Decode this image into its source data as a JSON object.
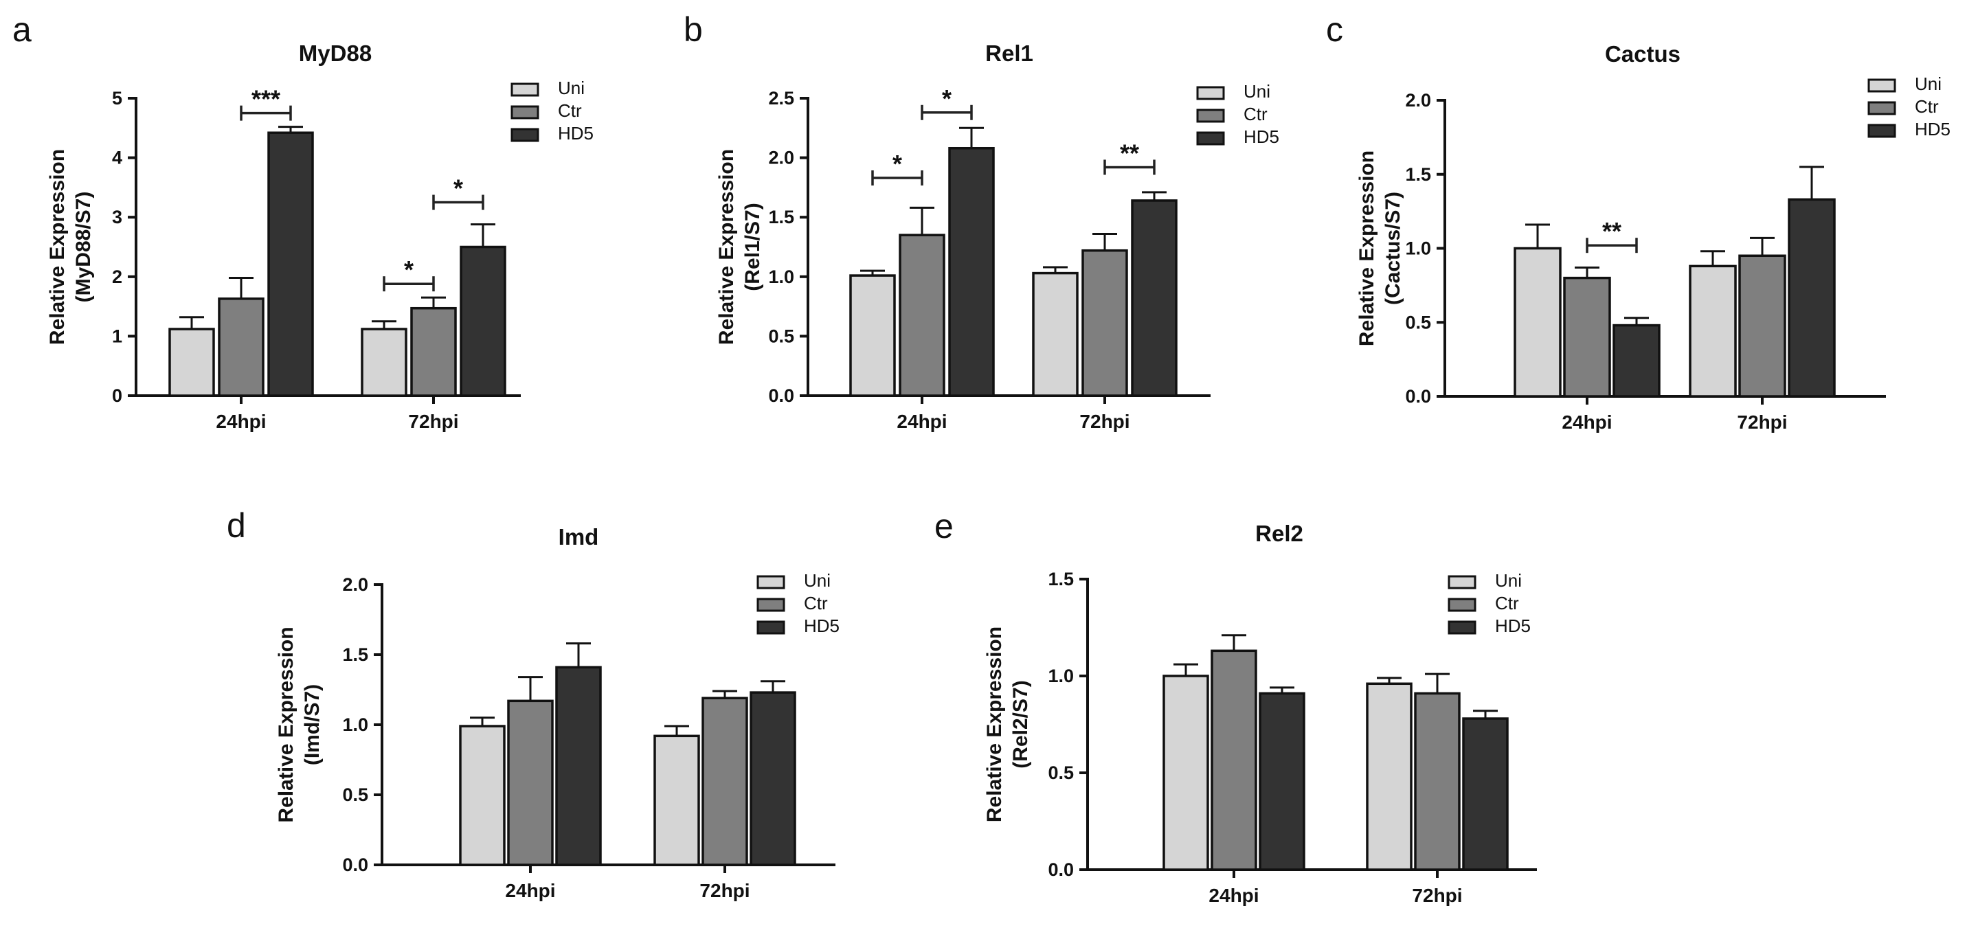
{
  "legend_labels": [
    "Uni",
    "Ctr",
    "HD5"
  ],
  "colors": {
    "Uni": "#d5d5d5",
    "Ctr": "#7f7f7f",
    "HD5": "#333333",
    "outline": "#111111"
  },
  "chart_data": [
    {
      "panel": "a",
      "type": "bar",
      "title": "MyD88",
      "ylabel": "Relative Expression\n(MyD88/S7)",
      "categories": [
        "24hpi",
        "72hpi"
      ],
      "ylim": [
        0,
        5
      ],
      "yticks": [
        "0",
        "1",
        "2",
        "3",
        "4",
        "5"
      ],
      "legend_position": "top-right",
      "series": [
        {
          "name": "Uni",
          "values": [
            1.12,
            1.12
          ],
          "errors": [
            0.2,
            0.13
          ]
        },
        {
          "name": "Ctr",
          "values": [
            1.63,
            1.47
          ],
          "errors": [
            0.35,
            0.18
          ]
        },
        {
          "name": "HD5",
          "values": [
            4.42,
            2.5
          ],
          "errors": [
            0.1,
            0.38
          ]
        }
      ],
      "significance": [
        {
          "category": 0,
          "from": "Ctr",
          "to": "HD5",
          "label": "***",
          "y": 4.75
        },
        {
          "category": 1,
          "from": "Uni",
          "to": "Ctr",
          "label": "*",
          "y": 1.88
        },
        {
          "category": 1,
          "from": "Ctr",
          "to": "HD5",
          "label": "*",
          "y": 3.25
        }
      ]
    },
    {
      "panel": "b",
      "type": "bar",
      "title": "Rel1",
      "ylabel": "Relative Expression\n(Rel1/S7)",
      "categories": [
        "24hpi",
        "72hpi"
      ],
      "ylim": [
        0,
        2.5
      ],
      "yticks": [
        "0.0",
        "0.5",
        "1.0",
        "1.5",
        "2.0",
        "2.5"
      ],
      "legend_position": "top-right",
      "series": [
        {
          "name": "Uni",
          "values": [
            1.01,
            1.03
          ],
          "errors": [
            0.04,
            0.05
          ]
        },
        {
          "name": "Ctr",
          "values": [
            1.35,
            1.22
          ],
          "errors": [
            0.23,
            0.14
          ]
        },
        {
          "name": "HD5",
          "values": [
            2.08,
            1.64
          ],
          "errors": [
            0.17,
            0.07
          ]
        }
      ],
      "significance": [
        {
          "category": 0,
          "from": "Uni",
          "to": "Ctr",
          "label": "*",
          "y": 1.83
        },
        {
          "category": 0,
          "from": "Ctr",
          "to": "HD5",
          "label": "*",
          "y": 2.38
        },
        {
          "category": 1,
          "from": "Ctr",
          "to": "HD5",
          "label": "**",
          "y": 1.92
        }
      ]
    },
    {
      "panel": "c",
      "type": "bar",
      "title": "Cactus",
      "ylabel": "Relative Expression\n(Cactus/S7)",
      "categories": [
        "24hpi",
        "72hpi"
      ],
      "ylim": [
        0,
        2.0
      ],
      "yticks": [
        "0.0",
        "0.5",
        "1.0",
        "1.5",
        "2.0"
      ],
      "legend_position": "top-right",
      "series": [
        {
          "name": "Uni",
          "values": [
            1.0,
            0.88
          ],
          "errors": [
            0.16,
            0.1
          ]
        },
        {
          "name": "Ctr",
          "values": [
            0.8,
            0.95
          ],
          "errors": [
            0.07,
            0.12
          ]
        },
        {
          "name": "HD5",
          "values": [
            0.48,
            1.33
          ],
          "errors": [
            0.05,
            0.22
          ]
        }
      ],
      "significance": [
        {
          "category": 0,
          "from": "Ctr",
          "to": "HD5",
          "label": "**",
          "y": 1.02
        }
      ]
    },
    {
      "panel": "d",
      "type": "bar",
      "title": "Imd",
      "ylabel": "Relative Expression\n(Imd/S7)",
      "categories": [
        "24hpi",
        "72hpi"
      ],
      "ylim": [
        0,
        2.0
      ],
      "yticks": [
        "0.0",
        "0.5",
        "1.0",
        "1.5",
        "2.0"
      ],
      "legend_position": "top-right",
      "series": [
        {
          "name": "Uni",
          "values": [
            0.99,
            0.92
          ],
          "errors": [
            0.06,
            0.07
          ]
        },
        {
          "name": "Ctr",
          "values": [
            1.17,
            1.19
          ],
          "errors": [
            0.17,
            0.05
          ]
        },
        {
          "name": "HD5",
          "values": [
            1.41,
            1.23
          ],
          "errors": [
            0.17,
            0.08
          ]
        }
      ],
      "significance": []
    },
    {
      "panel": "e",
      "type": "bar",
      "title": "Rel2",
      "ylabel": "Relative Expression\n(Rel2/S7)",
      "categories": [
        "24hpi",
        "72hpi"
      ],
      "ylim": [
        0,
        1.5
      ],
      "yticks": [
        "0.0",
        "0.5",
        "1.0",
        "1.5"
      ],
      "legend_position": "top-right",
      "series": [
        {
          "name": "Uni",
          "values": [
            1.0,
            0.96
          ],
          "errors": [
            0.06,
            0.03
          ]
        },
        {
          "name": "Ctr",
          "values": [
            1.13,
            0.91
          ],
          "errors": [
            0.08,
            0.1
          ]
        },
        {
          "name": "HD5",
          "values": [
            0.91,
            0.78
          ],
          "errors": [
            0.03,
            0.04
          ]
        }
      ],
      "significance": []
    }
  ]
}
